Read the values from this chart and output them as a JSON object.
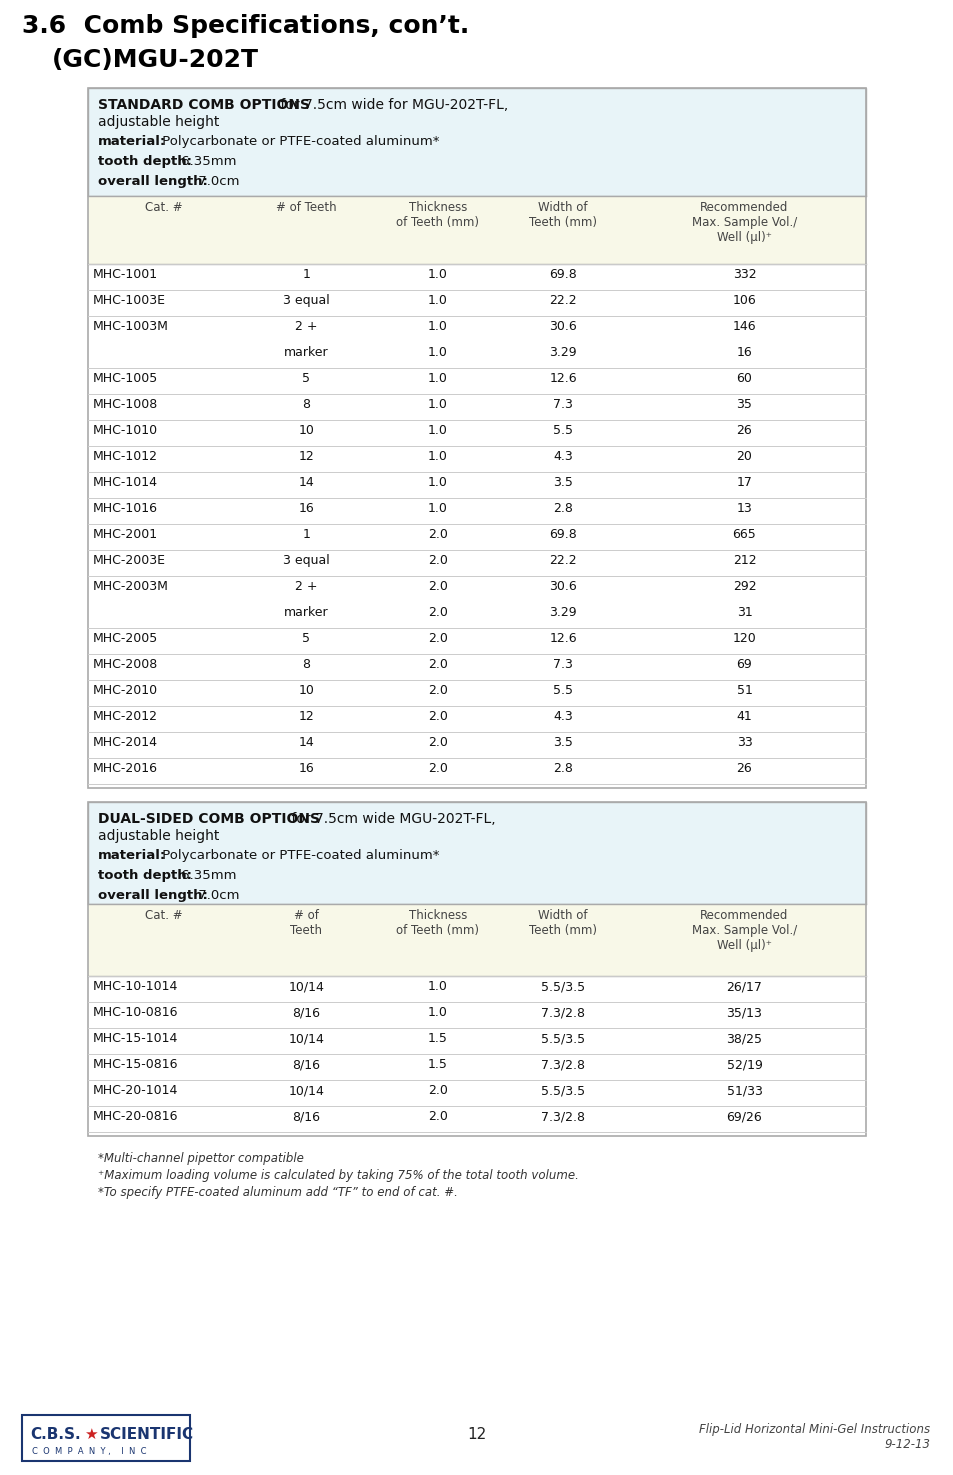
{
  "page_bg": "#ffffff",
  "section1_header_bold": "STANDARD COMB OPTIONS",
  "section1_header_rest": " for 7.5cm wide for MGU-202T-FL,",
  "section2_header_bold": "DUAL-SIDED COMB OPTIONS",
  "section2_header_rest": " for 7.5cm wide MGU-202T-FL,",
  "table1_col_headers": [
    "Cat. #",
    "# of Teeth",
    "Thickness\nof Teeth (mm)",
    "Width of\nTeeth (mm)",
    "Recommended\nMax. Sample Vol./\nWell (μl)⁺"
  ],
  "table1_rows": [
    [
      "MHC-1001",
      "1",
      "1.0",
      "69.8",
      "332"
    ],
    [
      "MHC-1003E",
      "3 equal",
      "1.0",
      "22.2",
      "106"
    ],
    [
      "MHC-1003M",
      "2 +",
      "1.0",
      "30.6",
      "146"
    ],
    [
      "",
      "marker",
      "1.0",
      "3.29",
      "16"
    ],
    [
      "MHC-1005",
      "5",
      "1.0",
      "12.6",
      "60"
    ],
    [
      "MHC-1008",
      "8",
      "1.0",
      "7.3",
      "35"
    ],
    [
      "MHC-1010",
      "10",
      "1.0",
      "5.5",
      "26"
    ],
    [
      "MHC-1012",
      "12",
      "1.0",
      "4.3",
      "20"
    ],
    [
      "MHC-1014",
      "14",
      "1.0",
      "3.5",
      "17"
    ],
    [
      "MHC-1016",
      "16",
      "1.0",
      "2.8",
      "13"
    ],
    [
      "MHC-2001",
      "1",
      "2.0",
      "69.8",
      "665"
    ],
    [
      "MHC-2003E",
      "3 equal",
      "2.0",
      "22.2",
      "212"
    ],
    [
      "MHC-2003M",
      "2 +",
      "2.0",
      "30.6",
      "292"
    ],
    [
      "",
      "marker",
      "2.0",
      "3.29",
      "31"
    ],
    [
      "MHC-2005",
      "5",
      "2.0",
      "12.6",
      "120"
    ],
    [
      "MHC-2008",
      "8",
      "2.0",
      "7.3",
      "69"
    ],
    [
      "MHC-2010",
      "10",
      "2.0",
      "5.5",
      "51"
    ],
    [
      "MHC-2012",
      "12",
      "2.0",
      "4.3",
      "41"
    ],
    [
      "MHC-2014",
      "14",
      "2.0",
      "3.5",
      "33"
    ],
    [
      "MHC-2016",
      "16",
      "2.0",
      "2.8",
      "26"
    ]
  ],
  "table2_col_headers": [
    "Cat. #",
    "# of\nTeeth",
    "Thickness\nof Teeth (mm)",
    "Width of\nTeeth (mm)",
    "Recommended\nMax. Sample Vol./\nWell (μl)⁺"
  ],
  "table2_rows": [
    [
      "MHC-10-1014",
      "10/14",
      "1.0",
      "5.5/3.5",
      "26/17"
    ],
    [
      "MHC-10-0816",
      "8/16",
      "1.0",
      "7.3/2.8",
      "35/13"
    ],
    [
      "MHC-15-1014",
      "10/14",
      "1.5",
      "5.5/3.5",
      "38/25"
    ],
    [
      "MHC-15-0816",
      "8/16",
      "1.5",
      "7.3/2.8",
      "52/19"
    ],
    [
      "MHC-20-1014",
      "10/14",
      "2.0",
      "5.5/3.5",
      "51/33"
    ],
    [
      "MHC-20-0816",
      "8/16",
      "2.0",
      "7.3/2.8",
      "69/26"
    ]
  ],
  "footnote1": "*Multi-channel pipettor compatible",
  "footnote2": "⁺Maximum loading volume is calculated by taking 75% of the total tooth volume.",
  "footnote3": "*To specify PTFE-coated aluminum add “TF” to end of cat. #.",
  "footer_page": "12",
  "footer_right": "Flip-Lid Horizontal Mini-Gel Instructions\n9-12-13",
  "header_bg": "#e8f4f8",
  "table_header_bg": "#f8f8e8",
  "border_color": "#aaaaaa",
  "line_color": "#cccccc",
  "text_color": "#111111",
  "gray_text": "#444444"
}
